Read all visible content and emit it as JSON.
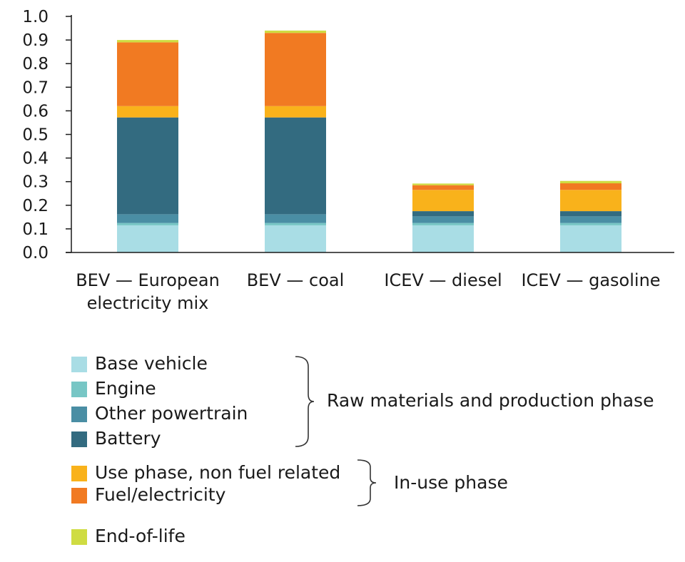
{
  "chart_data": {
    "type": "bar",
    "stacked": true,
    "categories": [
      [
        "BEV — European",
        "electricity mix"
      ],
      [
        "BEV — coal"
      ],
      [
        "ICEV — diesel"
      ],
      [
        "ICEV — gasoline"
      ]
    ],
    "ylim": [
      0,
      1.0
    ],
    "yticks": [
      "0.0",
      "0.1",
      "0.2",
      "0.3",
      "0.4",
      "0.5",
      "0.6",
      "0.7",
      "0.8",
      "0.9",
      "1.0"
    ],
    "series": [
      {
        "name": "Base vehicle",
        "color": "#a9dde5",
        "values": [
          0.115,
          0.115,
          0.115,
          0.115
        ]
      },
      {
        "name": "Engine",
        "color": "#77c6c5",
        "values": [
          0.01,
          0.01,
          0.01,
          0.01
        ]
      },
      {
        "name": "Other powertrain",
        "color": "#4a8ea4",
        "values": [
          0.037,
          0.037,
          0.028,
          0.028
        ]
      },
      {
        "name": "Battery",
        "color": "#336b80",
        "values": [
          0.41,
          0.41,
          0.022,
          0.022
        ]
      },
      {
        "name": "Use phase, non fuel related",
        "color": "#f9b21b",
        "values": [
          0.048,
          0.048,
          0.09,
          0.09
        ]
      },
      {
        "name": "Fuel/electricity",
        "color": "#f17a22",
        "values": [
          0.27,
          0.31,
          0.02,
          0.028
        ]
      },
      {
        "name": "End-of-life",
        "color": "#cfdc42",
        "values": [
          0.01,
          0.01,
          0.007,
          0.01
        ]
      }
    ],
    "groups": [
      {
        "label": "Raw materials and production phase",
        "members": [
          0,
          1,
          2,
          3
        ]
      },
      {
        "label": "In-use phase",
        "members": [
          4,
          5
        ]
      }
    ],
    "grid": false,
    "legend_position": "bottom"
  }
}
